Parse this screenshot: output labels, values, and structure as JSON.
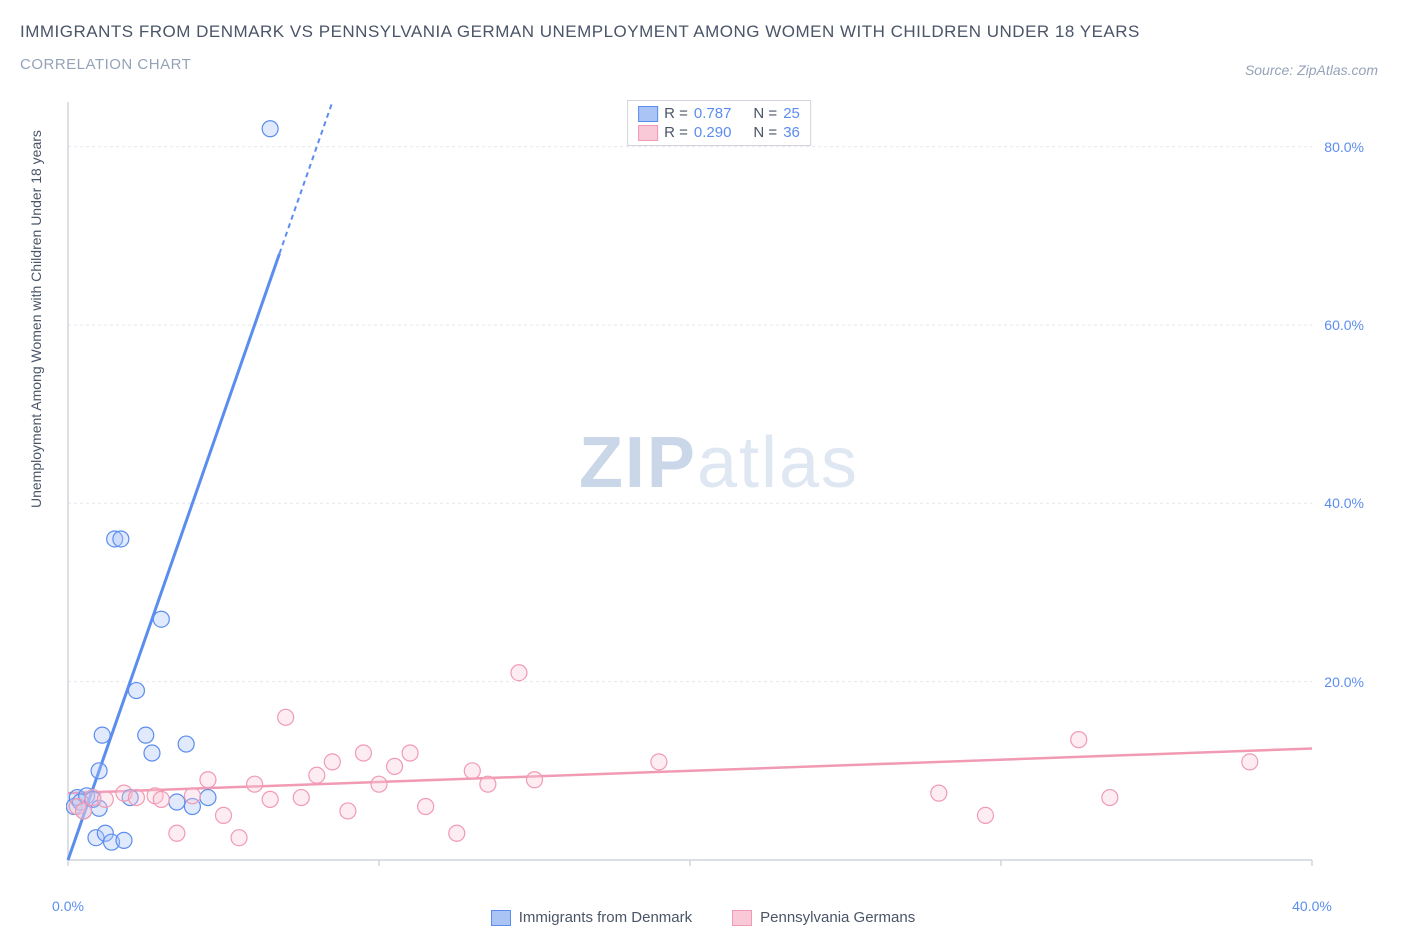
{
  "title": "IMMIGRANTS FROM DENMARK VS PENNSYLVANIA GERMAN UNEMPLOYMENT AMONG WOMEN WITH CHILDREN UNDER 18 YEARS",
  "subtitle": "CORRELATION CHART",
  "source_text": "Source: ZipAtlas.com",
  "watermark_bold": "ZIP",
  "watermark_light": "atlas",
  "chart": {
    "type": "scatter",
    "background_color": "#ffffff",
    "grid_color": "#e5e7eb",
    "grid_dash": "3,3",
    "axis_line_color": "#d1d5db",
    "tick_label_color": "#5b8def",
    "yaxis_label": "Unemployment Among Women with Children Under 18 years",
    "xlim": [
      0,
      40
    ],
    "ylim": [
      0,
      85
    ],
    "xtick_step": 10,
    "ytick_step": 20,
    "xticks": [
      0,
      10,
      20,
      30,
      40
    ],
    "yticks": [
      20,
      40,
      60,
      80
    ],
    "point_radius": 8,
    "point_fill_opacity": 0.35,
    "point_stroke_width": 1.2,
    "trend_line_width": 2.5,
    "series": [
      {
        "name": "Immigrants from Denmark",
        "color": "#5b8def",
        "fill": "#a9c4f5",
        "r_label": "R =",
        "r_value": "0.787",
        "n_label": "N =",
        "n_value": "25",
        "trend": {
          "x1": 0,
          "y1": 0,
          "x2": 8.5,
          "y2": 85,
          "solid_until_y": 68
        },
        "points": [
          [
            0.2,
            6
          ],
          [
            0.3,
            7
          ],
          [
            0.4,
            6.5
          ],
          [
            0.5,
            5.5
          ],
          [
            0.6,
            7.2
          ],
          [
            0.8,
            6.8
          ],
          [
            0.9,
            2.5
          ],
          [
            1.0,
            10
          ],
          [
            1.0,
            5.8
          ],
          [
            1.1,
            14
          ],
          [
            1.2,
            3.0
          ],
          [
            1.4,
            2.0
          ],
          [
            1.5,
            36
          ],
          [
            1.7,
            36
          ],
          [
            1.8,
            2.2
          ],
          [
            2.0,
            7
          ],
          [
            2.2,
            19
          ],
          [
            2.5,
            14
          ],
          [
            2.7,
            12
          ],
          [
            3.0,
            27
          ],
          [
            3.5,
            6.5
          ],
          [
            3.8,
            13
          ],
          [
            4.5,
            7
          ],
          [
            6.5,
            82
          ],
          [
            4.0,
            6
          ]
        ]
      },
      {
        "name": "Pennsylvania Germans",
        "color": "#f19ab4",
        "fill": "#f9c9d7",
        "r_label": "R =",
        "r_value": "0.290",
        "n_label": "N =",
        "n_value": "36",
        "trend": {
          "x1": 0,
          "y1": 7.5,
          "x2": 40,
          "y2": 12.5
        },
        "points": [
          [
            0.3,
            6
          ],
          [
            0.5,
            5.5
          ],
          [
            0.8,
            7
          ],
          [
            1.2,
            6.8
          ],
          [
            1.8,
            7.5
          ],
          [
            2.2,
            7.0
          ],
          [
            2.8,
            7.2
          ],
          [
            3.0,
            6.8
          ],
          [
            3.5,
            3.0
          ],
          [
            4.0,
            7.2
          ],
          [
            4.5,
            9.0
          ],
          [
            5.0,
            5.0
          ],
          [
            5.5,
            2.5
          ],
          [
            6.0,
            8.5
          ],
          [
            6.5,
            6.8
          ],
          [
            7.0,
            16
          ],
          [
            7.5,
            7.0
          ],
          [
            8.0,
            9.5
          ],
          [
            8.5,
            11
          ],
          [
            9.0,
            5.5
          ],
          [
            9.5,
            12
          ],
          [
            10,
            8.5
          ],
          [
            10.5,
            10.5
          ],
          [
            11.0,
            12
          ],
          [
            11.5,
            6.0
          ],
          [
            12.5,
            3.0
          ],
          [
            13.0,
            10
          ],
          [
            13.5,
            8.5
          ],
          [
            14.5,
            21
          ],
          [
            15.0,
            9.0
          ],
          [
            19.0,
            11
          ],
          [
            28.0,
            7.5
          ],
          [
            29.5,
            5.0
          ],
          [
            32.5,
            13.5
          ],
          [
            33.5,
            7.0
          ],
          [
            38.0,
            11
          ]
        ]
      }
    ]
  },
  "legend_bottom": {
    "items": [
      {
        "label": "Immigrants from Denmark",
        "fill": "#a9c4f5",
        "stroke": "#5b8def"
      },
      {
        "label": "Pennsylvania Germans",
        "fill": "#f9c9d7",
        "stroke": "#f19ab4"
      }
    ]
  }
}
